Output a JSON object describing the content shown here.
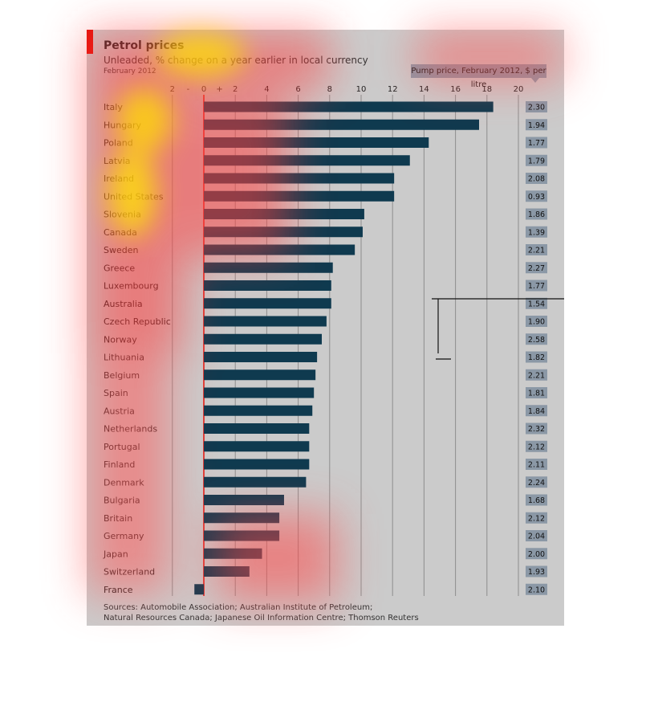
{
  "header": {
    "title": "Petrol prices",
    "subtitle": "Unleaded, % change on a year earlier in local currency",
    "date": "February 2012",
    "price_column_title": "Pump price, February 2012, $ per litre"
  },
  "footer": {
    "sources_line1": "Sources: Automobile Association; Australian Institute of Petroleum;",
    "sources_line2": "Natural Resources Canada; Japanese Oil Information Centre; Thomson Reuters"
  },
  "colors": {
    "bar": "#0f3a4f",
    "panel": "#cbcbcb",
    "gridline": "#8e8e8e",
    "zero_line": "#e3120b",
    "price_box": "#8b98a6",
    "brand_red": "#e3120b"
  },
  "chart_data": {
    "type": "bar",
    "orientation": "horizontal",
    "title": "Petrol prices",
    "subtitle": "Unleaded, % change on a year earlier in local currency",
    "xlim": [
      -2,
      20
    ],
    "x_ticks": [
      "2",
      "0",
      "2",
      "4",
      "6",
      "8",
      "10",
      "12",
      "14",
      "16",
      "18",
      "20"
    ],
    "x_tick_values": [
      -2,
      0,
      2,
      4,
      6,
      8,
      10,
      12,
      14,
      16,
      18,
      20
    ],
    "grid": true,
    "categories": [
      "Italy",
      "Hungary",
      "Poland",
      "Latvia",
      "Ireland",
      "United States",
      "Slovenia",
      "Canada",
      "Sweden",
      "Greece",
      "Luxembourg",
      "Australia",
      "Czech Republic",
      "Norway",
      "Lithuania",
      "Belgium",
      "Spain",
      "Austria",
      "Netherlands",
      "Portugal",
      "Finland",
      "Denmark",
      "Bulgaria",
      "Britain",
      "Germany",
      "Japan",
      "Switzerland",
      "France"
    ],
    "values": [
      18.4,
      17.5,
      14.3,
      13.1,
      12.1,
      12.1,
      10.2,
      10.1,
      9.6,
      8.2,
      8.1,
      8.1,
      7.8,
      7.5,
      7.2,
      7.1,
      7.0,
      6.9,
      6.7,
      6.7,
      6.7,
      6.5,
      5.1,
      4.8,
      4.8,
      3.7,
      2.9,
      -0.6
    ],
    "pump_price_labels": [
      "2.30",
      "1.94",
      "1.77",
      "1.79",
      "2.08",
      "0.93",
      "1.86",
      "1.39",
      "2.21",
      "2.27",
      "1.77",
      "1.54",
      "1.90",
      "2.58",
      "1.82",
      "2.21",
      "1.81",
      "1.84",
      "2.32",
      "2.12",
      "2.11",
      "2.24",
      "1.68",
      "2.12",
      "2.04",
      "2.00",
      "1.93",
      "2.10"
    ]
  }
}
